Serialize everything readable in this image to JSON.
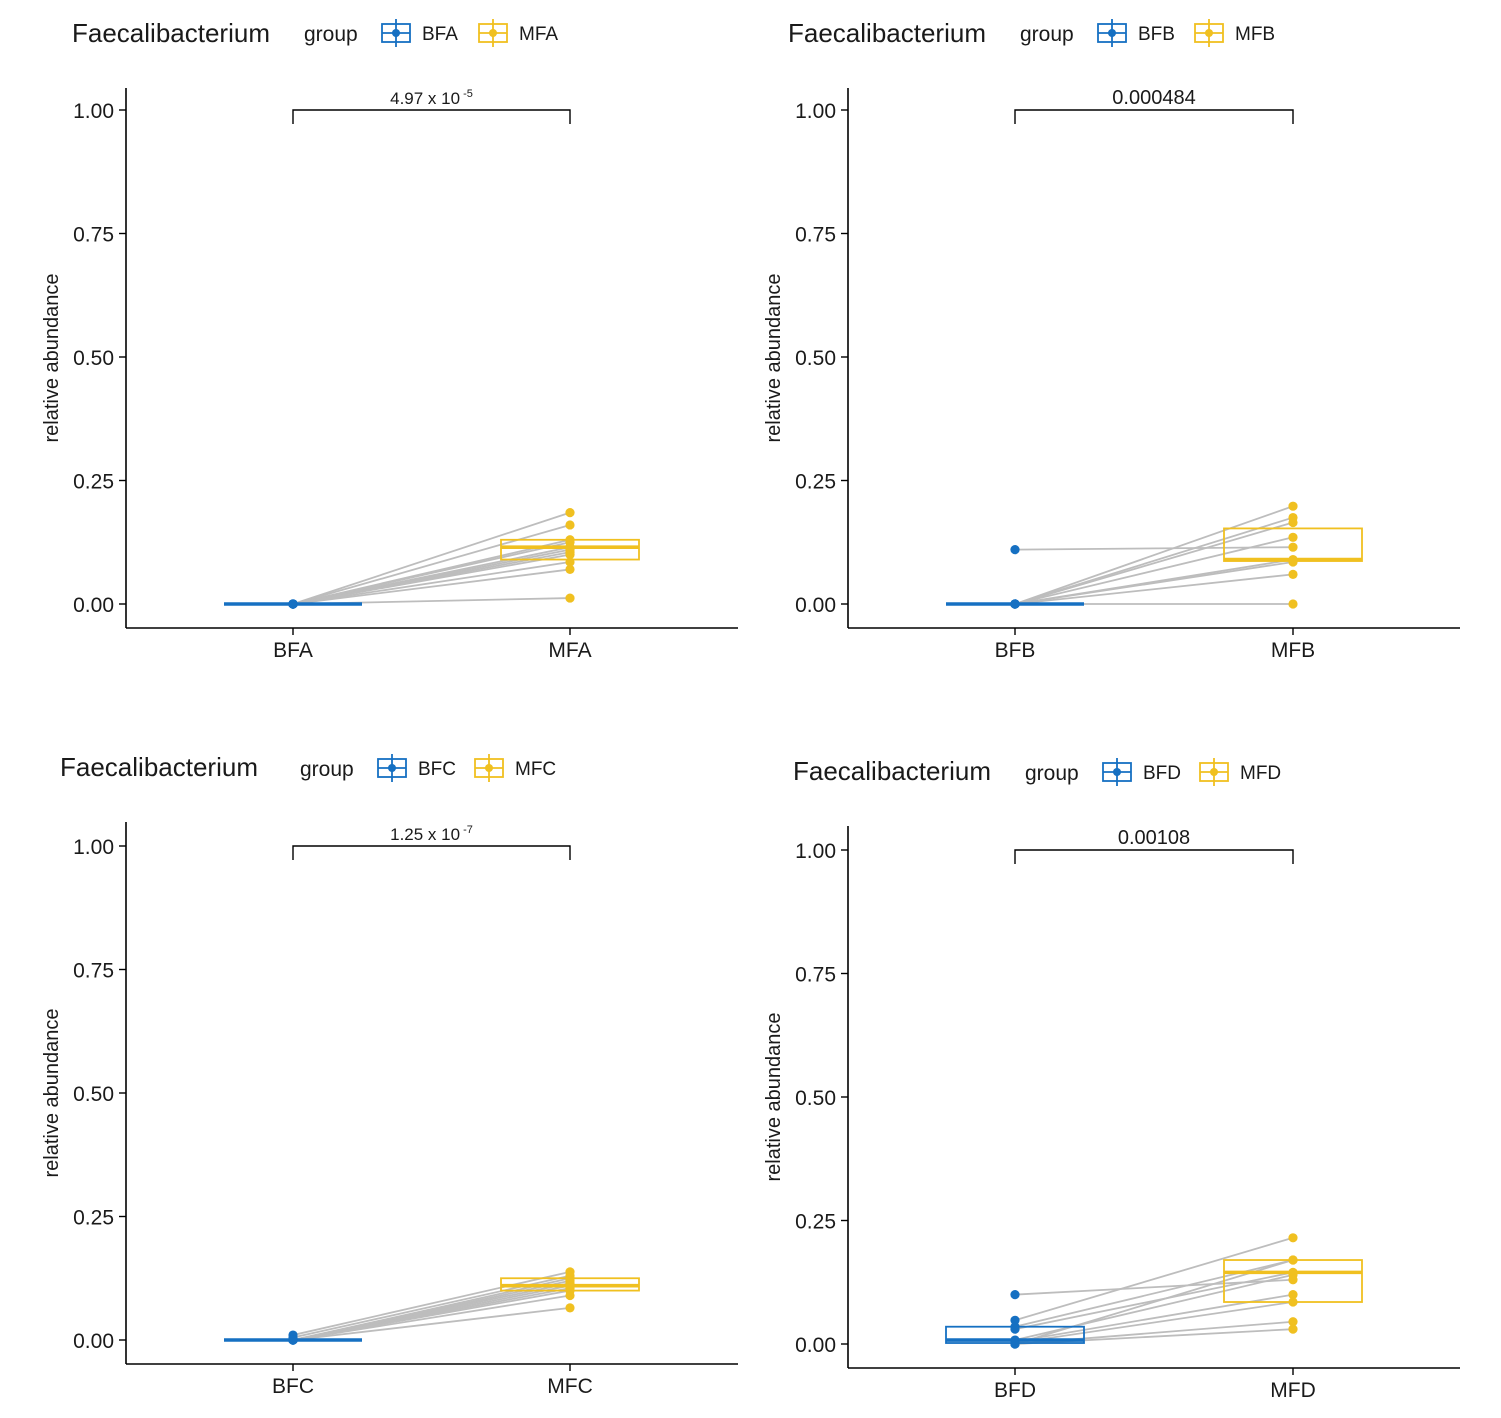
{
  "colors": {
    "blue": "#1670c2",
    "yellow": "#f0c020",
    "pair_line": "#bdbdbd",
    "axis": "#000000",
    "text": "#1a1a1a"
  },
  "chart_data": [
    {
      "type": "boxplot-paired",
      "title": "Faecalibacterium",
      "legend_title": "group",
      "legend_placement": "top",
      "ylabel": "relative abundance",
      "ylim": [
        0,
        1
      ],
      "yticks": [
        "0.00",
        "0.25",
        "0.50",
        "0.75",
        "1.00"
      ],
      "categories": [
        "BFA",
        "MFA"
      ],
      "pvalue": {
        "mantissa": "4.97 x 10",
        "exponent": "-5"
      },
      "boxes": [
        {
          "q1": 0.0,
          "median": 0.0,
          "q3": 0.0
        },
        {
          "q1": 0.09,
          "median": 0.115,
          "q3": 0.13
        }
      ],
      "points": [
        [
          0,
          0,
          0,
          0,
          0,
          0,
          0,
          0,
          0,
          0,
          0
        ],
        [
          0.185,
          0.16,
          0.13,
          0.125,
          0.115,
          0.11,
          0.105,
          0.1,
          0.085,
          0.07,
          0.012
        ]
      ]
    },
    {
      "type": "boxplot-paired",
      "title": "Faecalibacterium",
      "legend_title": "group",
      "legend_placement": "top",
      "ylabel": "relative abundance",
      "ylim": [
        0,
        1
      ],
      "yticks": [
        "0.00",
        "0.25",
        "0.50",
        "0.75",
        "1.00"
      ],
      "categories": [
        "BFB",
        "MFB"
      ],
      "pvalue": {
        "mantissa": "0.000484",
        "exponent": ""
      },
      "boxes": [
        {
          "q1": 0.0,
          "median": 0.0,
          "q3": 0.0
        },
        {
          "q1": 0.087,
          "median": 0.09,
          "q3": 0.153
        }
      ],
      "points": [
        [
          0.11,
          0,
          0,
          0,
          0,
          0,
          0,
          0,
          0
        ],
        [
          0.115,
          0.198,
          0.175,
          0.165,
          0.135,
          0.09,
          0.085,
          0.06,
          0.0
        ]
      ]
    },
    {
      "type": "boxplot-paired",
      "title": "Faecalibacterium",
      "legend_title": "group",
      "legend_placement": "top",
      "ylabel": "relative abundance",
      "ylim": [
        0,
        1
      ],
      "yticks": [
        "0.00",
        "0.25",
        "0.50",
        "0.75",
        "1.00"
      ],
      "categories": [
        "BFC",
        "MFC"
      ],
      "pvalue": {
        "mantissa": "1.25 x 10",
        "exponent": "-7"
      },
      "boxes": [
        {
          "q1": 0.0,
          "median": 0.0,
          "q3": 0.0
        },
        {
          "q1": 0.1,
          "median": 0.11,
          "q3": 0.125
        }
      ],
      "points": [
        [
          0.01,
          0.005,
          0,
          0,
          0,
          0,
          0,
          0,
          0,
          0
        ],
        [
          0.138,
          0.13,
          0.125,
          0.12,
          0.115,
          0.11,
          0.105,
          0.1,
          0.09,
          0.065
        ]
      ]
    },
    {
      "type": "boxplot-paired",
      "title": "Faecalibacterium",
      "legend_title": "group",
      "legend_placement": "top",
      "ylabel": "relative abundance",
      "ylim": [
        0,
        1
      ],
      "yticks": [
        "0.00",
        "0.25",
        "0.50",
        "0.75",
        "1.00"
      ],
      "categories": [
        "BFD",
        "MFD"
      ],
      "pvalue": {
        "mantissa": "0.00108",
        "exponent": ""
      },
      "boxes": [
        {
          "q1": 0.002,
          "median": 0.008,
          "q3": 0.035
        },
        {
          "q1": 0.085,
          "median": 0.145,
          "q3": 0.17
        }
      ],
      "points": [
        [
          0.1,
          0.048,
          0.035,
          0.03,
          0.008,
          0.005,
          0.002,
          0,
          0,
          0
        ],
        [
          0.13,
          0.215,
          0.17,
          0.145,
          0.14,
          0.1,
          0.085,
          0.045,
          0.03,
          0.17
        ]
      ]
    }
  ]
}
